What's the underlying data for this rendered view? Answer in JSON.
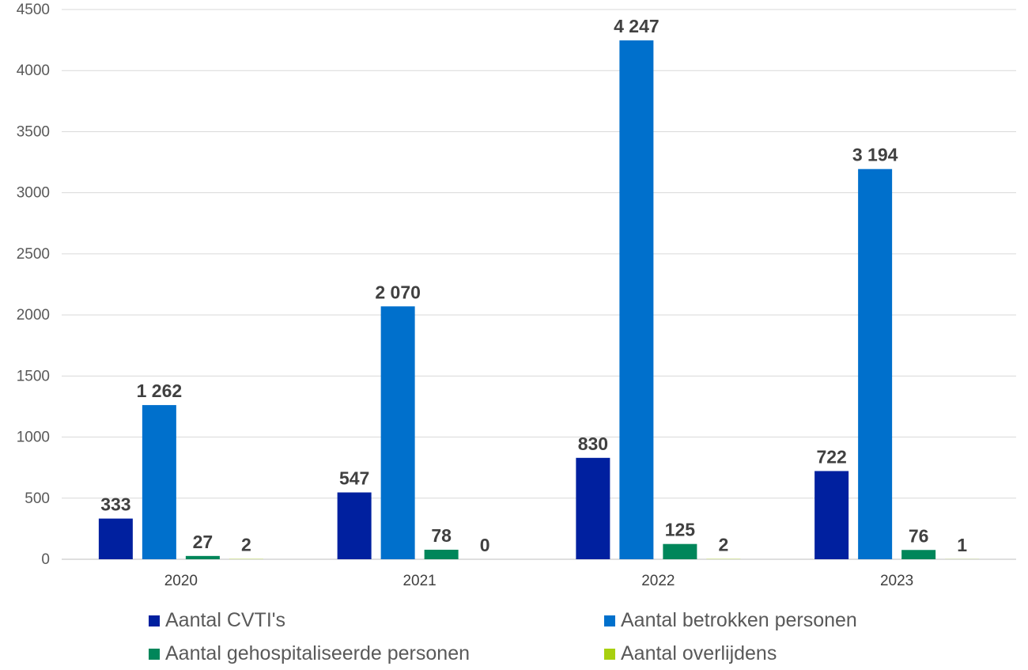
{
  "chart_data": {
    "type": "bar",
    "categories": [
      "2020",
      "2021",
      "2022",
      "2023"
    ],
    "series": [
      {
        "name": "Aantal CVTI's",
        "values": [
          333,
          547,
          830,
          722
        ],
        "labels": [
          "333",
          "547",
          "830",
          "722"
        ],
        "color": "#00209F"
      },
      {
        "name": "Aantal betrokken personen",
        "values": [
          1262,
          2070,
          4247,
          3194
        ],
        "labels": [
          "1 262",
          "2 070",
          "4 247",
          "3 194"
        ],
        "color": "#0070CC"
      },
      {
        "name": "Aantal gehospitaliseerde personen",
        "values": [
          27,
          78,
          125,
          76
        ],
        "labels": [
          "27",
          "78",
          "125",
          "76"
        ],
        "color": "#00865A"
      },
      {
        "name": "Aantal overlijdens",
        "values": [
          2,
          0,
          2,
          1
        ],
        "labels": [
          "2",
          "0",
          "2",
          "1"
        ],
        "color": "#A8D00F"
      }
    ],
    "yticks": [
      "0",
      "500",
      "1000",
      "1500",
      "2000",
      "2500",
      "3000",
      "3500",
      "4000",
      "4500"
    ],
    "ylim": [
      0,
      4500
    ],
    "grid": true,
    "legend": "bottom",
    "title": "",
    "xlabel": "",
    "ylabel": ""
  }
}
